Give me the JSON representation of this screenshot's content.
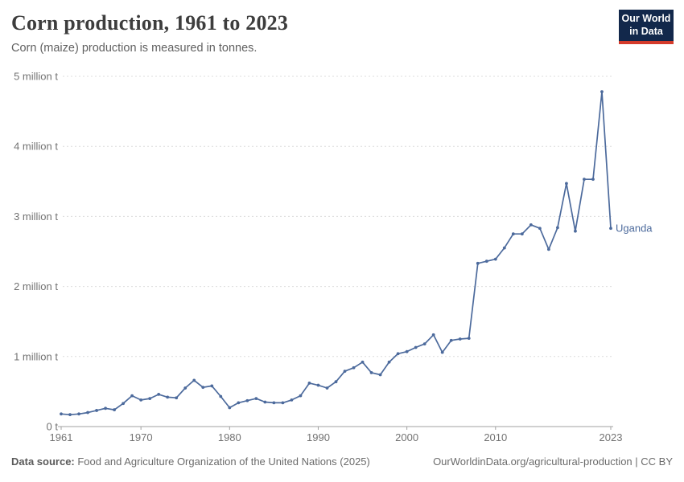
{
  "header": {
    "title": "Corn production, 1961 to 2023",
    "subtitle": "Corn (maize) production is measured in tonnes."
  },
  "logo": {
    "line1": "Our World",
    "line2": "in Data",
    "bg_color": "#12284b",
    "accent_color": "#d43b2b"
  },
  "footer": {
    "datasource_label": "Data source:",
    "datasource_text": " Food and Agriculture Organization of the United Nations (2025)",
    "right_text": "OurWorldinData.org/agricultural-production | CC BY"
  },
  "chart_data": {
    "type": "line",
    "title": "Corn production, 1961 to 2023",
    "unit": "tonnes",
    "values_unit": "million tonnes",
    "grid": "horizontal-dashed",
    "legend_position": "end-of-line-label",
    "xlim": [
      1961,
      2023
    ],
    "ylim": [
      0,
      5
    ],
    "x": [
      1961,
      1962,
      1963,
      1964,
      1965,
      1966,
      1967,
      1968,
      1969,
      1970,
      1971,
      1972,
      1973,
      1974,
      1975,
      1976,
      1977,
      1978,
      1979,
      1980,
      1981,
      1982,
      1983,
      1984,
      1985,
      1986,
      1987,
      1988,
      1989,
      1990,
      1991,
      1992,
      1993,
      1994,
      1995,
      1996,
      1997,
      1998,
      1999,
      2000,
      2001,
      2002,
      2003,
      2004,
      2005,
      2006,
      2007,
      2008,
      2009,
      2010,
      2011,
      2012,
      2013,
      2014,
      2015,
      2016,
      2017,
      2018,
      2019,
      2020,
      2021,
      2022,
      2023
    ],
    "series": [
      {
        "name": "Uganda",
        "color": "#4c6a9c",
        "values": [
          0.18,
          0.17,
          0.18,
          0.2,
          0.23,
          0.26,
          0.24,
          0.33,
          0.44,
          0.38,
          0.4,
          0.46,
          0.42,
          0.41,
          0.55,
          0.66,
          0.56,
          0.58,
          0.43,
          0.27,
          0.34,
          0.37,
          0.4,
          0.35,
          0.34,
          0.34,
          0.38,
          0.44,
          0.62,
          0.59,
          0.55,
          0.64,
          0.79,
          0.84,
          0.92,
          0.77,
          0.74,
          0.92,
          1.04,
          1.07,
          1.13,
          1.18,
          1.31,
          1.06,
          1.23,
          1.25,
          1.26,
          2.33,
          2.36,
          2.39,
          2.55,
          2.75,
          2.75,
          2.88,
          2.83,
          2.53,
          2.84,
          3.47,
          2.79,
          3.53,
          3.53,
          4.78,
          2.83
        ]
      }
    ],
    "yticks": [
      {
        "value": 0,
        "label": "0 t"
      },
      {
        "value": 1,
        "label": "1 million t"
      },
      {
        "value": 2,
        "label": "2 million t"
      },
      {
        "value": 3,
        "label": "3 million t"
      },
      {
        "value": 4,
        "label": "4 million t"
      },
      {
        "value": 5,
        "label": "5 million t"
      }
    ],
    "xticks": [
      {
        "year": 1961,
        "label": "1961"
      },
      {
        "year": 1970,
        "label": "1970"
      },
      {
        "year": 1980,
        "label": "1980"
      },
      {
        "year": 1990,
        "label": "1990"
      },
      {
        "year": 2000,
        "label": "2000"
      },
      {
        "year": 2010,
        "label": "2010"
      },
      {
        "year": 2023,
        "label": "2023"
      }
    ],
    "colors": {
      "gridline": "#dcdcdc",
      "axis": "#a1a1a1",
      "tick_label": "#737373"
    }
  }
}
